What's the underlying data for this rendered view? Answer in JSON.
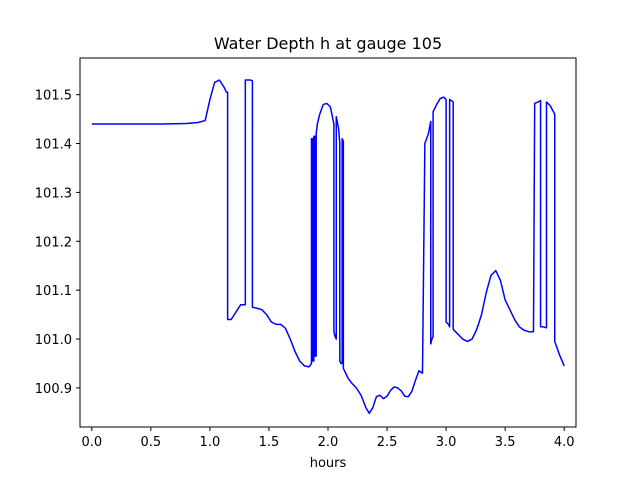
{
  "chart_data": {
    "type": "line",
    "title": "Water Depth h at gauge 105",
    "xlabel": "hours",
    "ylabel": "",
    "xlim": [
      -0.1,
      4.1
    ],
    "ylim": [
      100.82,
      101.575
    ],
    "xticks": [
      0.0,
      0.5,
      1.0,
      1.5,
      2.0,
      2.5,
      3.0,
      3.5,
      4.0
    ],
    "xtick_labels": [
      "0.0",
      "0.5",
      "1.0",
      "1.5",
      "2.0",
      "2.5",
      "3.0",
      "3.5",
      "4.0"
    ],
    "yticks": [
      100.9,
      101.0,
      101.1,
      101.2,
      101.3,
      101.4,
      101.5
    ],
    "ytick_labels": [
      "100.9",
      "101.0",
      "101.1",
      "101.2",
      "101.3",
      "101.4",
      "101.5"
    ],
    "grid": false,
    "legend": "none",
    "series": [
      {
        "color": "#0000ff",
        "x": [
          0.0,
          0.2,
          0.4,
          0.6,
          0.8,
          0.9,
          0.96,
          1.0,
          1.04,
          1.08,
          1.12,
          1.14,
          1.15,
          1.15,
          1.18,
          1.22,
          1.26,
          1.3,
          1.3,
          1.31,
          1.34,
          1.36,
          1.36,
          1.4,
          1.44,
          1.48,
          1.52,
          1.56,
          1.6,
          1.64,
          1.68,
          1.72,
          1.76,
          1.8,
          1.84,
          1.86,
          1.86,
          1.87,
          1.87,
          1.88,
          1.88,
          1.89,
          1.89,
          1.9,
          1.9,
          1.91,
          1.93,
          1.96,
          1.99,
          2.02,
          2.05,
          2.05,
          2.06,
          2.07,
          2.07,
          2.09,
          2.1,
          2.1,
          2.11,
          2.12,
          2.12,
          2.13,
          2.13,
          2.14,
          2.17,
          2.2,
          2.24,
          2.28,
          2.32,
          2.35,
          2.38,
          2.41,
          2.44,
          2.47,
          2.5,
          2.53,
          2.56,
          2.59,
          2.62,
          2.65,
          2.68,
          2.71,
          2.74,
          2.77,
          2.8,
          2.82,
          2.82,
          2.85,
          2.87,
          2.87,
          2.88,
          2.89,
          2.89,
          2.92,
          2.95,
          2.98,
          3.0,
          3.0,
          3.02,
          3.03,
          3.03,
          3.06,
          3.06,
          3.08,
          3.1,
          3.14,
          3.18,
          3.22,
          3.26,
          3.3,
          3.34,
          3.38,
          3.42,
          3.46,
          3.5,
          3.54,
          3.58,
          3.62,
          3.66,
          3.7,
          3.74,
          3.75,
          3.75,
          3.78,
          3.8,
          3.8,
          3.82,
          3.85,
          3.85,
          3.88,
          3.92,
          3.92,
          3.96,
          4.0
        ],
        "y": [
          101.44,
          101.44,
          101.44,
          101.44,
          101.441,
          101.443,
          101.447,
          101.49,
          101.525,
          101.53,
          101.515,
          101.505,
          101.505,
          101.04,
          101.04,
          101.055,
          101.07,
          101.07,
          101.53,
          101.53,
          101.53,
          101.528,
          101.065,
          101.063,
          101.06,
          101.05,
          101.035,
          101.03,
          101.03,
          101.022,
          101.0,
          100.975,
          100.955,
          100.945,
          100.943,
          100.95,
          101.41,
          101.41,
          100.955,
          100.955,
          101.415,
          101.415,
          100.965,
          100.965,
          101.42,
          101.44,
          101.46,
          101.48,
          101.482,
          101.475,
          101.44,
          101.015,
          101.005,
          101.0,
          101.455,
          101.43,
          101.4,
          100.955,
          100.95,
          100.95,
          101.41,
          101.405,
          100.94,
          100.935,
          100.92,
          100.91,
          100.9,
          100.885,
          100.86,
          100.848,
          100.86,
          100.882,
          100.885,
          100.878,
          100.883,
          100.895,
          100.902,
          100.9,
          100.894,
          100.883,
          100.882,
          100.893,
          100.915,
          100.935,
          100.93,
          101.395,
          101.4,
          101.42,
          101.445,
          100.99,
          101.0,
          101.005,
          101.465,
          101.48,
          101.492,
          101.495,
          101.49,
          101.035,
          101.03,
          101.025,
          101.49,
          101.485,
          101.02,
          101.015,
          101.01,
          101.0,
          100.995,
          101.0,
          101.02,
          101.05,
          101.095,
          101.13,
          101.14,
          101.12,
          101.08,
          101.06,
          101.04,
          101.025,
          101.018,
          101.015,
          101.015,
          101.48,
          101.482,
          101.485,
          101.488,
          101.025,
          101.025,
          101.023,
          101.485,
          101.478,
          101.46,
          100.995,
          100.968,
          100.945
        ]
      }
    ]
  }
}
